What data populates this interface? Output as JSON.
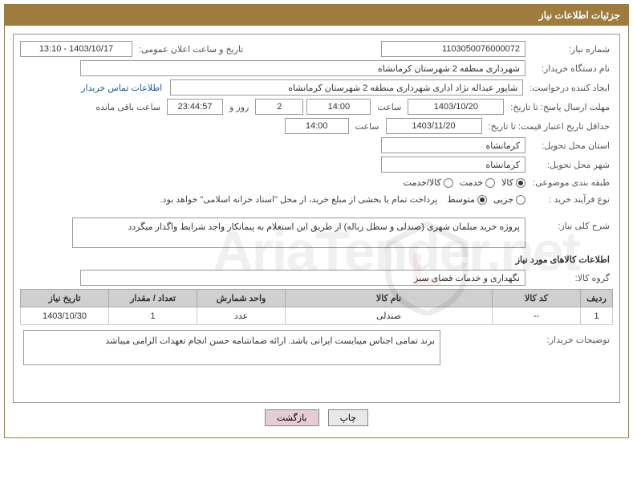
{
  "header": {
    "title": "جزئیات اطلاعات نیاز"
  },
  "fields": {
    "need_number_label": "شماره نیاز:",
    "need_number": "1103050076000072",
    "announce_label": "تاریخ و ساعت اعلان عمومی:",
    "announce_value": "1403/10/17 - 13:10",
    "buyer_label": "نام دستگاه خریدار:",
    "buyer_value": "شهرداری منطقه 2 شهرستان کرمانشاه",
    "requester_label": "ایجاد کننده درخواست:",
    "requester_value": "شاپور عبداله نژاد اداری شهرداری منطقه 2 شهرستان کرمانشاه",
    "contact_link": "اطلاعات تماس خریدار",
    "reply_deadline_label": "مهلت ارسال پاسخ: تا تاریخ:",
    "reply_date": "1403/10/20",
    "time_label": "ساعت",
    "reply_time": "14:00",
    "days_count": "2",
    "days_and": "روز و",
    "remain_time": "23:44:57",
    "remain_label": "ساعت باقی مانده",
    "price_validity_label": "حداقل تاریخ اعتبار قیمت: تا تاریخ:",
    "price_date": "1403/11/20",
    "price_time": "14:00",
    "province_label": "استان محل تحویل:",
    "province_value": "کرمانشاه",
    "city_label": "شهر محل تحویل:",
    "city_value": "کرمانشاه",
    "category_label": "طبقه بندی موضوعی:",
    "process_label": "نوع فرآیند خرید :",
    "payment_note": "پرداخت تمام یا بخشی از مبلغ خرید، از محل \"اسناد خزانه اسلامی\" خواهد بود.",
    "need_desc_label": "شرح کلی نیاز:",
    "need_desc_value": "پروژه خرید مبلمان شهری (صندلی و سطل زباله) از طریق این استعلام به پیمانکار واجد شرایط واگذار میگردد",
    "items_section_title": "اطلاعات کالاهای مورد نیاز",
    "group_label": "گروه کالا:",
    "group_value": "نگهداری و خدمات فضای سبز",
    "buyer_notes_label": "توضیحات خریدار:",
    "buyer_notes_value": "برند تمامی اجناس میبایست ایرانی باشد. ارائه ضمانتنامه حسن انجام تعهدات الزامی میباشد"
  },
  "radios": {
    "category": [
      {
        "label": "کالا",
        "checked": true
      },
      {
        "label": "خدمت",
        "checked": false
      },
      {
        "label": "کالا/خدمت",
        "checked": false
      }
    ],
    "process": [
      {
        "label": "جزیی",
        "checked": false
      },
      {
        "label": "متوسط",
        "checked": true
      }
    ]
  },
  "table": {
    "headers": {
      "row": "ردیف",
      "code": "کد کالا",
      "name": "نام کالا",
      "unit": "واحد شمارش",
      "qty": "تعداد / مقدار",
      "date": "تاریخ نیاز"
    },
    "rows": [
      {
        "row": "1",
        "code": "--",
        "name": "صندلی",
        "unit": "عدد",
        "qty": "1",
        "date": "1403/10/30"
      }
    ],
    "widths": {
      "row": "40px",
      "code": "110px",
      "name": "auto",
      "unit": "110px",
      "qty": "110px",
      "date": "110px"
    }
  },
  "buttons": {
    "print": "چاپ",
    "back": "بازگشت"
  },
  "watermark": "AriaTender.net"
}
